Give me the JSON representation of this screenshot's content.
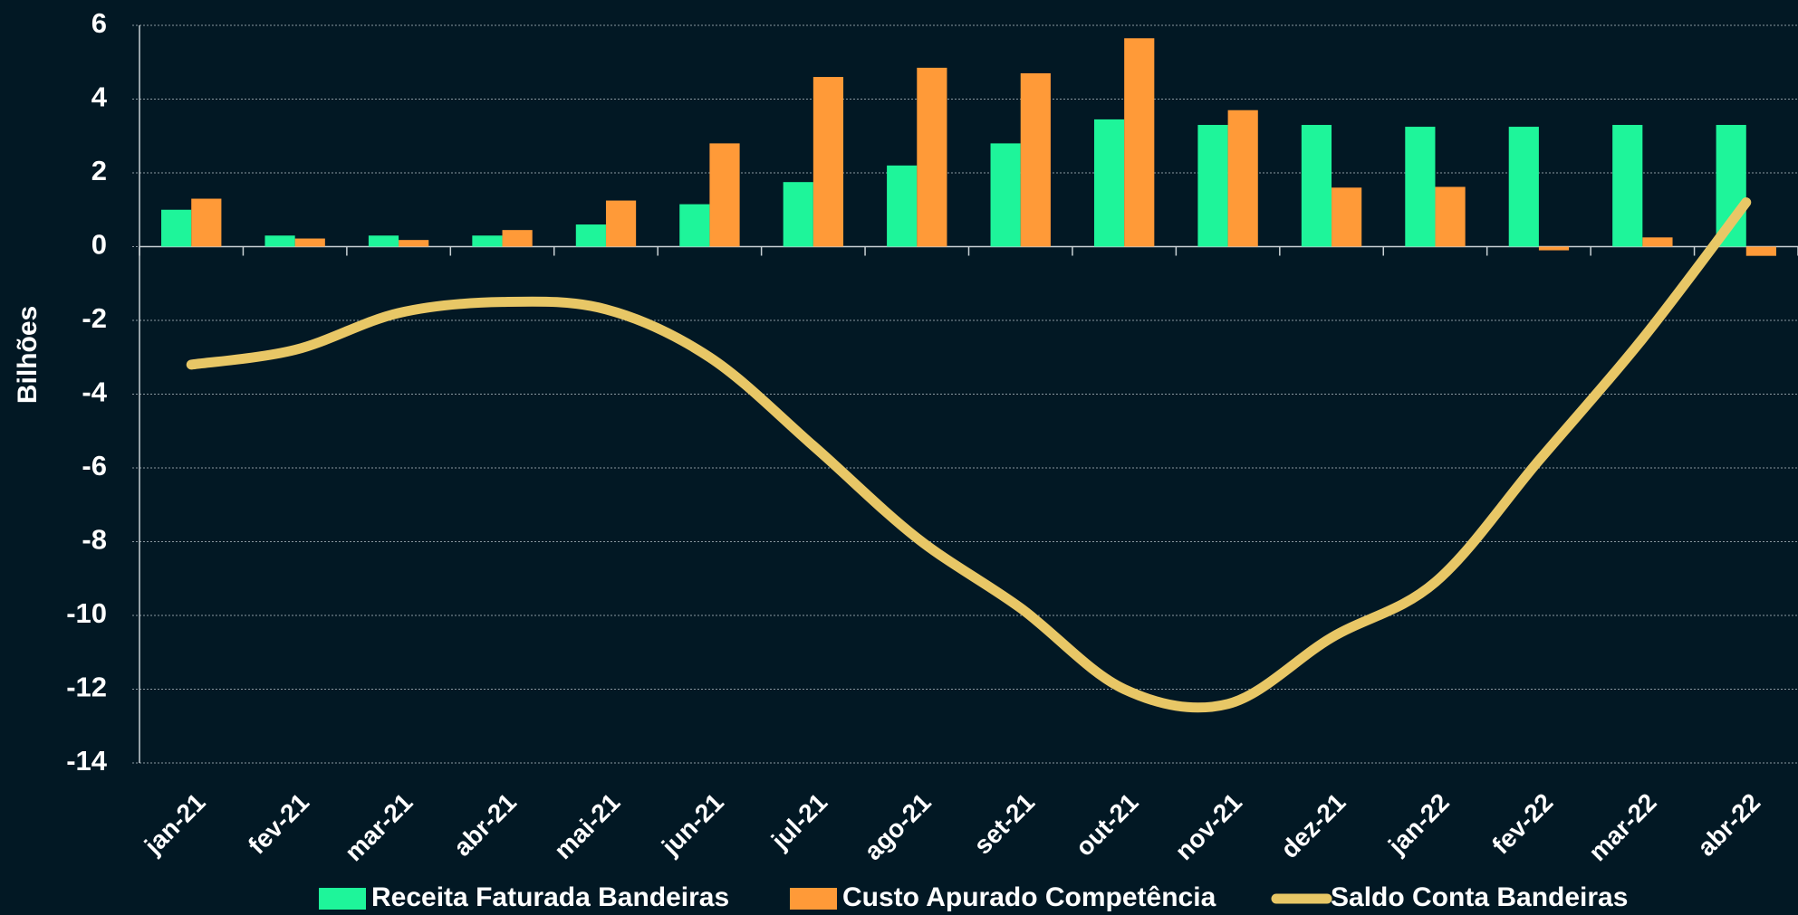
{
  "chart_data": {
    "type": "bar_line",
    "y_label": "Bilhões",
    "categories": [
      "jan-21",
      "fev-21",
      "mar-21",
      "abr-21",
      "mai-21",
      "jun-21",
      "jul-21",
      "ago-21",
      "set-21",
      "out-21",
      "nov-21",
      "dez-21",
      "jan-22",
      "fev-22",
      "mar-22",
      "abr-22"
    ],
    "series": [
      {
        "name": "Receita Faturada Bandeiras",
        "type": "bar",
        "color": "#1ef59a",
        "values": [
          1.0,
          0.3,
          0.3,
          0.3,
          0.6,
          1.15,
          1.75,
          2.2,
          2.8,
          3.45,
          3.3,
          3.3,
          3.25,
          3.25,
          3.3,
          3.3
        ]
      },
      {
        "name": "Custo Apurado Competência",
        "type": "bar",
        "color": "#ff9a38",
        "values": [
          1.3,
          0.22,
          0.18,
          0.45,
          1.25,
          2.8,
          4.6,
          4.85,
          4.7,
          5.65,
          3.7,
          1.6,
          1.62,
          -0.1,
          0.25,
          -0.25
        ]
      },
      {
        "name": "Saldo Conta Bandeiras",
        "type": "line",
        "color": "#e8c766",
        "values": [
          -3.2,
          -2.8,
          -1.8,
          -1.5,
          -1.7,
          -3.0,
          -5.4,
          -7.9,
          -9.8,
          -12.0,
          -12.4,
          -10.6,
          -9.1,
          -5.8,
          -2.5,
          1.2
        ]
      }
    ],
    "ylim": [
      -14,
      6
    ],
    "yticks": [
      -14,
      -12,
      -10,
      -8,
      -6,
      -4,
      -2,
      0,
      2,
      4,
      6
    ],
    "grid": true
  }
}
